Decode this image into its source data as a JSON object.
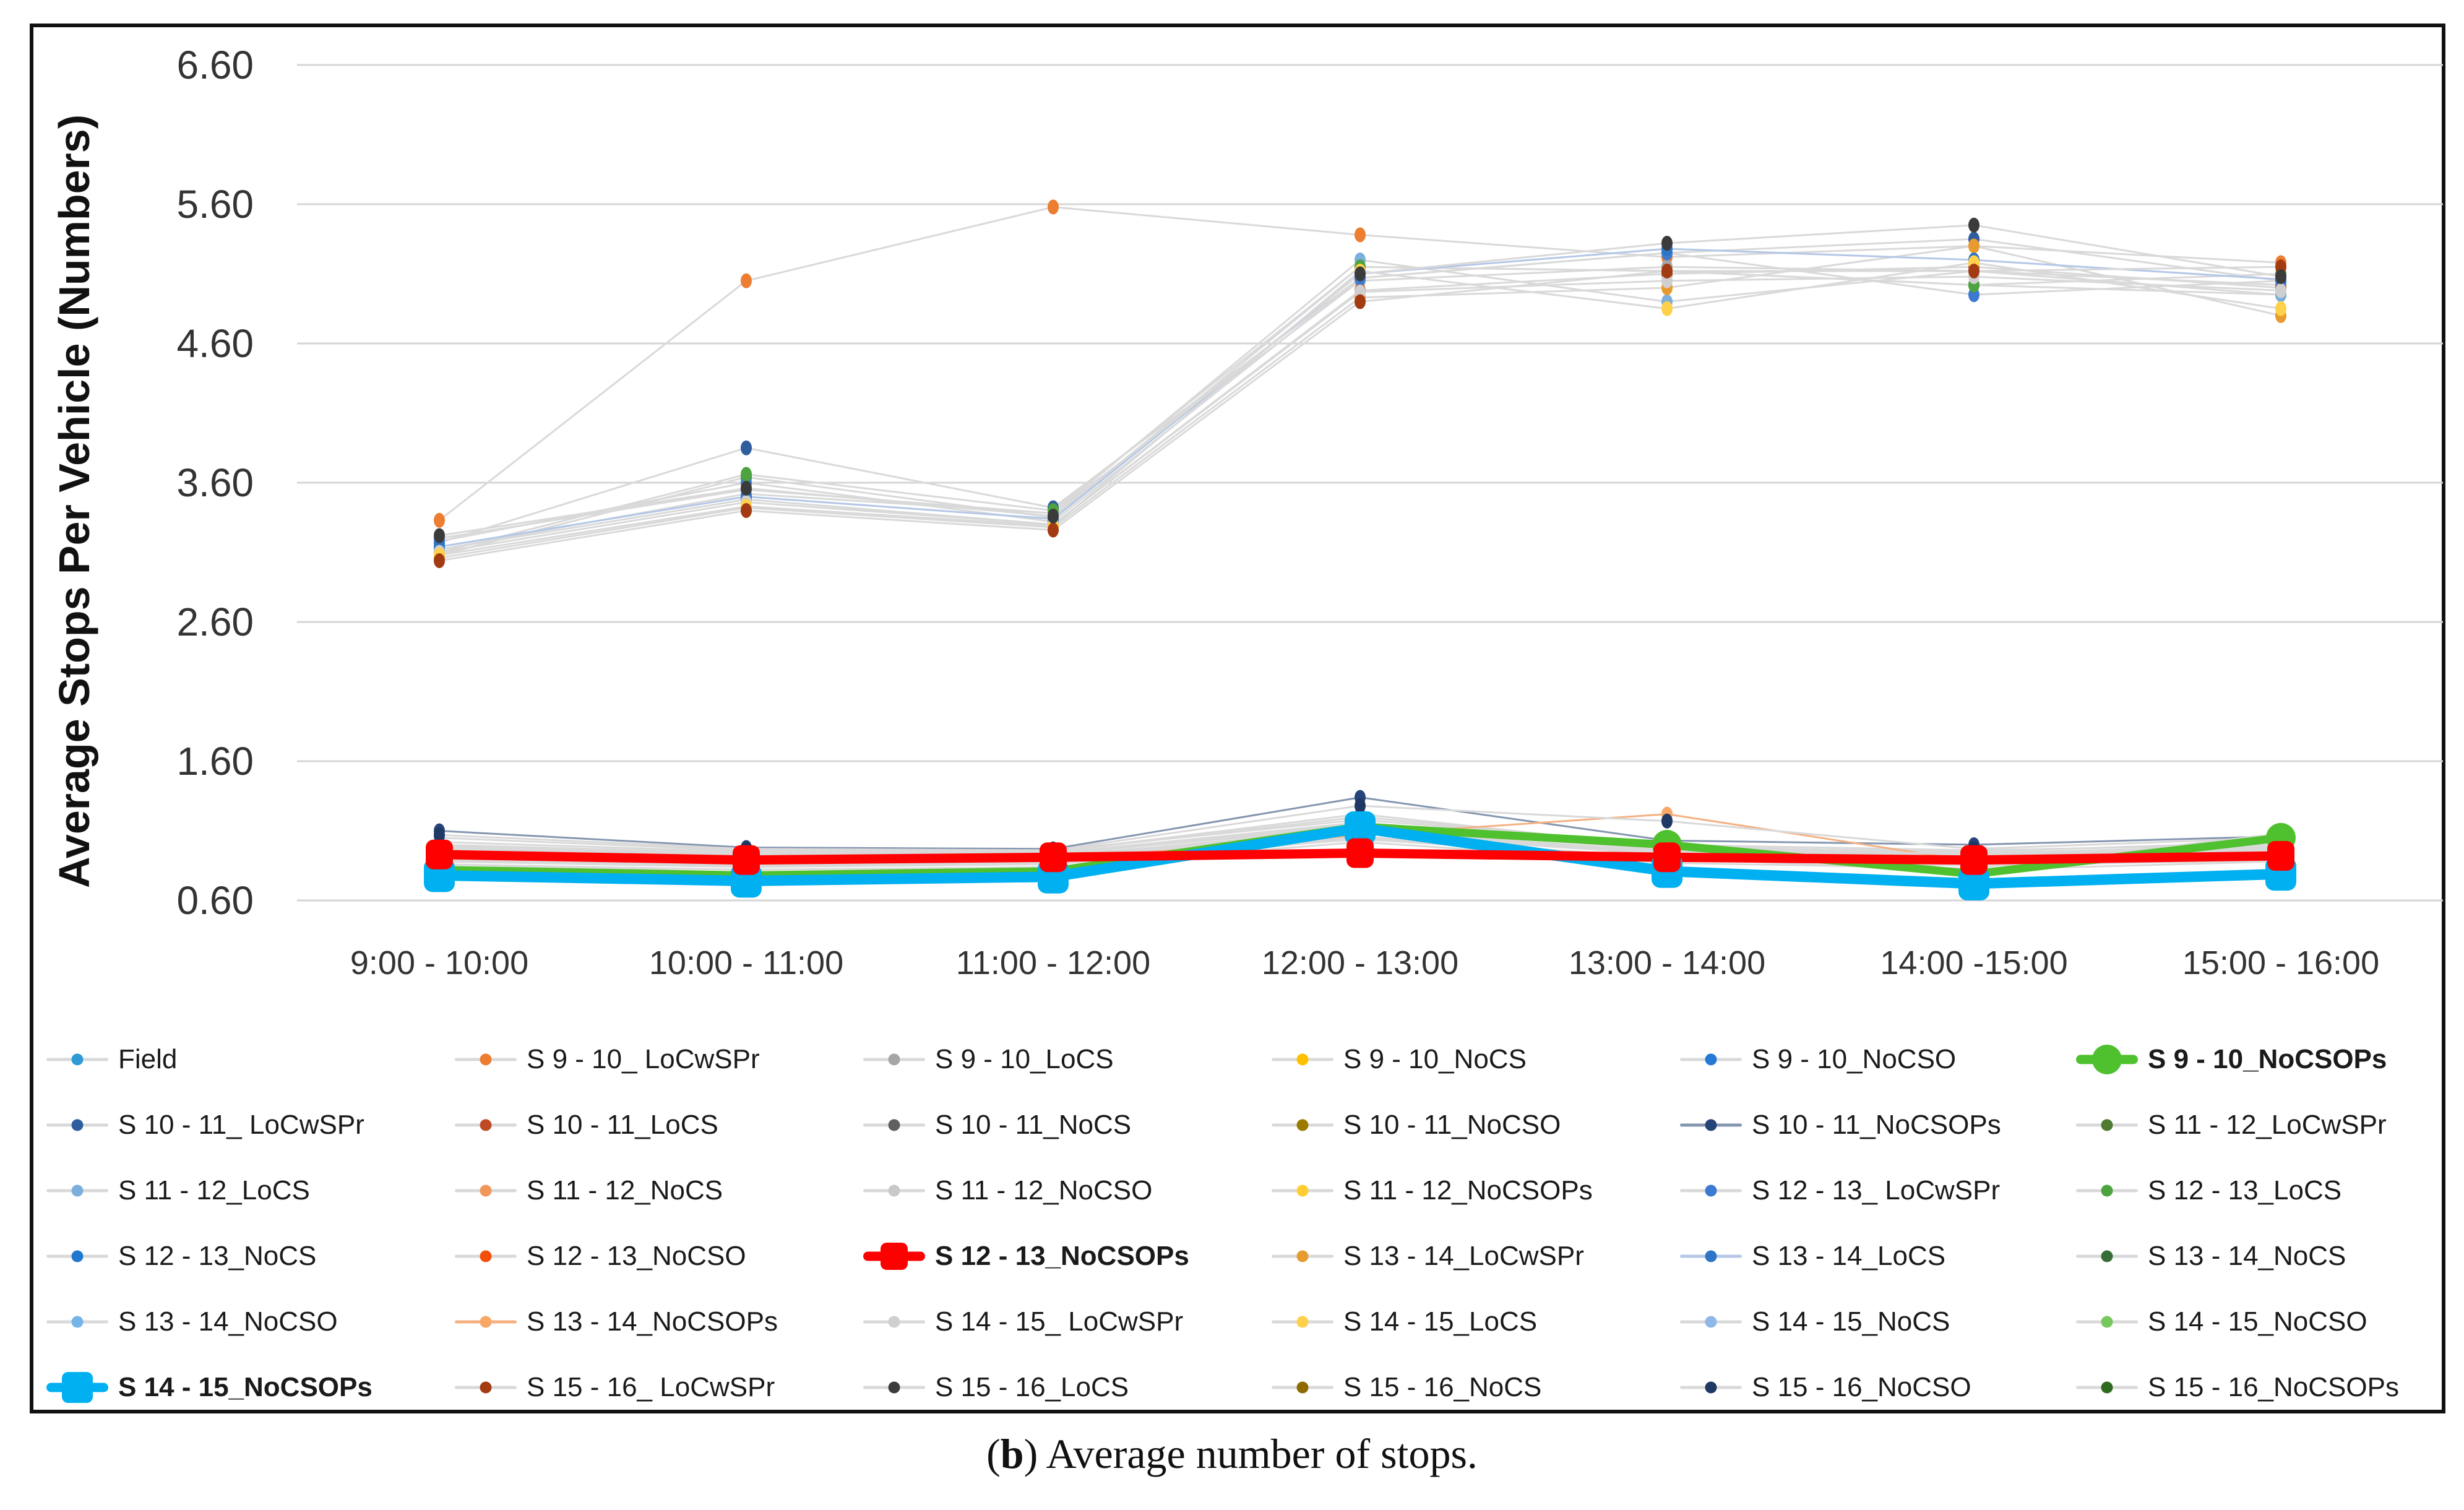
{
  "figure": {
    "y_axis_title": "Average Stops Per Vehicle (Numbers)",
    "caption": {
      "pre": "(",
      "label": "b",
      "post": ") Average number of stops."
    }
  },
  "chart_data": {
    "type": "line",
    "title": "",
    "xlabel": "",
    "ylabel": "Average Stops Per Vehicle (Numbers)",
    "categories": [
      "9:00 - 10:00",
      "10:00 - 11:00",
      "11:00 - 12:00",
      "12:00 - 13:00",
      "13:00 - 14:00",
      "14:00 -15:00",
      "15:00 - 16:00"
    ],
    "y_ticks": [
      "6.60",
      "5.60",
      "4.60",
      "3.60",
      "2.60",
      "1.60",
      "0.60"
    ],
    "ylim": [
      0.6,
      6.6
    ],
    "grid": "horizontal",
    "gridline_color": "#D6D6D6",
    "default_line_color": "#D9D9D9",
    "legend_position": "bottom",
    "series": [
      {
        "name": "Field",
        "color": "#2E9BD5",
        "values": [
          0.86,
          0.8,
          0.83,
          1.05,
          0.9,
          0.82,
          0.88
        ]
      },
      {
        "name": "S 9 - 10_ LoCwSPr",
        "color": "#ED7D31",
        "values": [
          3.33,
          5.05,
          5.58,
          5.38,
          5.22,
          5.3,
          5.18
        ]
      },
      {
        "name": "S 9 - 10_LoCS",
        "color": "#A6A6A6",
        "values": [
          3.2,
          3.55,
          3.38,
          5.05,
          5.15,
          5.12,
          5.02
        ]
      },
      {
        "name": "S 9 - 10_NoCS",
        "color": "#FFC000",
        "values": [
          0.95,
          0.9,
          0.92,
          1.1,
          0.95,
          0.9,
          0.95
        ]
      },
      {
        "name": "S 9 - 10_NoCSO",
        "color": "#2779D6",
        "values": [
          1.02,
          0.95,
          0.96,
          1.18,
          1.0,
          0.96,
          1.0
        ]
      },
      {
        "name": "S 9 - 10_NoCSOPs",
        "color": "#4FC02E",
        "bold": true,
        "marker": "circle",
        "ms": 48,
        "lw": 13,
        "values": [
          0.82,
          0.78,
          0.81,
          1.13,
          1.0,
          0.79,
          1.05
        ]
      },
      {
        "name": "S 10 - 11_ LoCwSPr",
        "color": "#2E5E9E",
        "values": [
          3.17,
          3.85,
          3.42,
          5.07,
          5.25,
          5.35,
          5.05
        ]
      },
      {
        "name": "S 10 - 11_LoCS",
        "color": "#BE4B26",
        "values": [
          3.12,
          3.48,
          3.3,
          4.98,
          5.1,
          5.15,
          5.0
        ]
      },
      {
        "name": "S 10 - 11_NoCS",
        "color": "#5F5F5F",
        "values": [
          0.98,
          0.92,
          0.94,
          1.12,
          0.97,
          0.93,
          0.97
        ]
      },
      {
        "name": "S 10 - 11_NoCSO",
        "color": "#9C7A00",
        "values": [
          0.92,
          0.88,
          0.9,
          1.08,
          0.93,
          0.89,
          0.93
        ]
      },
      {
        "name": "S 10 - 11_NoCSOPs",
        "color": "#264478",
        "line": "#8496B0",
        "values": [
          1.1,
          0.98,
          0.97,
          1.34,
          1.03,
          1.0,
          1.06
        ]
      },
      {
        "name": "S 11 - 12_LoCwSPr",
        "color": "#4E7A31",
        "values": [
          3.08,
          3.64,
          3.35,
          5.15,
          5.12,
          5.02,
          4.95
        ]
      },
      {
        "name": "S 11 - 12_LoCS",
        "color": "#7CAFDD",
        "values": [
          3.12,
          3.52,
          3.38,
          5.2,
          4.9,
          5.12,
          4.95
        ]
      },
      {
        "name": "S 11 - 12_NoCS",
        "color": "#F1975A",
        "values": [
          0.93,
          0.89,
          0.91,
          1.09,
          0.94,
          0.9,
          0.94
        ]
      },
      {
        "name": "S 11 - 12_NoCSO",
        "color": "#C9C9C9",
        "values": [
          0.97,
          0.91,
          0.93,
          1.15,
          0.96,
          0.92,
          0.96
        ]
      },
      {
        "name": "S 11 - 12_NoCSOPs",
        "color": "#FFCD33",
        "values": [
          0.88,
          0.84,
          0.86,
          1.06,
          0.89,
          0.85,
          0.89
        ]
      },
      {
        "name": "S 12 - 13_ LoCwSPr",
        "color": "#3B7AD0",
        "values": [
          3.18,
          3.6,
          3.32,
          5.07,
          5.25,
          4.95,
          5.05
        ]
      },
      {
        "name": "S 12 - 13_LoCS",
        "color": "#4CA33F",
        "values": [
          3.1,
          3.66,
          3.4,
          5.15,
          5.12,
          5.02,
          5.1
        ]
      },
      {
        "name": "S 12 - 13_NoCS",
        "color": "#1F77D0",
        "values": [
          1.0,
          0.94,
          0.95,
          1.2,
          0.99,
          0.94,
          0.99
        ]
      },
      {
        "name": "S 12 - 13_NoCSO",
        "color": "#F2500A",
        "values": [
          0.9,
          0.86,
          0.88,
          1.05,
          0.91,
          0.87,
          0.91
        ]
      },
      {
        "name": "S 12 - 13_NoCSOPs",
        "color": "#FF0000",
        "bold": true,
        "marker": "square",
        "ms": 44,
        "lw": 15,
        "values": [
          0.93,
          0.89,
          0.91,
          0.94,
          0.91,
          0.89,
          0.92
        ]
      },
      {
        "name": "S 13 - 14_LoCwSPr",
        "color": "#E79B2E",
        "values": [
          3.06,
          3.42,
          3.28,
          4.93,
          5.0,
          5.3,
          4.8
        ]
      },
      {
        "name": "S 13 - 14_LoCS",
        "color": "#2E75C6",
        "line": "#B4C7E7",
        "values": [
          3.14,
          3.5,
          3.34,
          5.1,
          5.28,
          5.2,
          5.06
        ]
      },
      {
        "name": "S 13 - 14_NoCS",
        "color": "#376E37",
        "values": [
          0.96,
          0.91,
          0.93,
          1.14,
          0.96,
          0.92,
          0.96
        ]
      },
      {
        "name": "S 13 - 14_NoCSO",
        "color": "#74B4E8",
        "values": [
          1.05,
          0.96,
          0.95,
          1.22,
          0.98,
          0.95,
          1.02
        ]
      },
      {
        "name": "S 13 - 14_NoCSOPs",
        "color": "#F8A766",
        "line": "#F4B183",
        "values": [
          0.91,
          0.87,
          0.89,
          1.07,
          1.22,
          0.88,
          0.92
        ]
      },
      {
        "name": "S 14 - 15_ LoCwSPr",
        "color": "#CFCFCF",
        "values": [
          3.1,
          3.46,
          3.3,
          4.97,
          5.05,
          5.08,
          4.98
        ]
      },
      {
        "name": "S 14 - 15_LoCS",
        "color": "#FFD04A",
        "values": [
          3.08,
          3.43,
          3.29,
          5.12,
          4.85,
          5.18,
          4.85
        ]
      },
      {
        "name": "S 14 - 15_NoCS",
        "color": "#8EB8E6",
        "values": [
          0.99,
          0.93,
          0.94,
          1.16,
          0.98,
          0.93,
          0.98
        ]
      },
      {
        "name": "S 14 - 15_NoCSO",
        "color": "#77C85C",
        "values": [
          0.94,
          0.9,
          0.92,
          1.11,
          0.95,
          0.91,
          0.95
        ]
      },
      {
        "name": "S 14 - 15_NoCSOPs",
        "color": "#00B0F0",
        "bold": true,
        "marker": "square",
        "ms": 50,
        "lw": 17,
        "values": [
          0.78,
          0.74,
          0.77,
          1.12,
          0.81,
          0.72,
          0.79
        ]
      },
      {
        "name": "S 15 - 16_ LoCwSPr",
        "color": "#A33B12",
        "values": [
          3.04,
          3.4,
          3.26,
          4.9,
          5.12,
          5.12,
          5.15
        ]
      },
      {
        "name": "S 15 - 16_LoCS",
        "color": "#3B3B3B",
        "values": [
          3.22,
          3.56,
          3.36,
          5.1,
          5.32,
          5.45,
          5.08
        ]
      },
      {
        "name": "S 15 - 16_NoCS",
        "color": "#8F6A00",
        "values": [
          0.89,
          0.85,
          0.87,
          1.04,
          0.9,
          0.86,
          0.9
        ]
      },
      {
        "name": "S 15 - 16_NoCSO",
        "color": "#1F3864",
        "values": [
          1.07,
          0.97,
          0.96,
          1.28,
          1.17,
          0.97,
          1.05
        ]
      },
      {
        "name": "S 15 - 16_NoCSOPs",
        "color": "#2E6B1E",
        "values": [
          0.86,
          0.82,
          0.84,
          1.02,
          0.87,
          0.83,
          1.08
        ]
      }
    ]
  }
}
